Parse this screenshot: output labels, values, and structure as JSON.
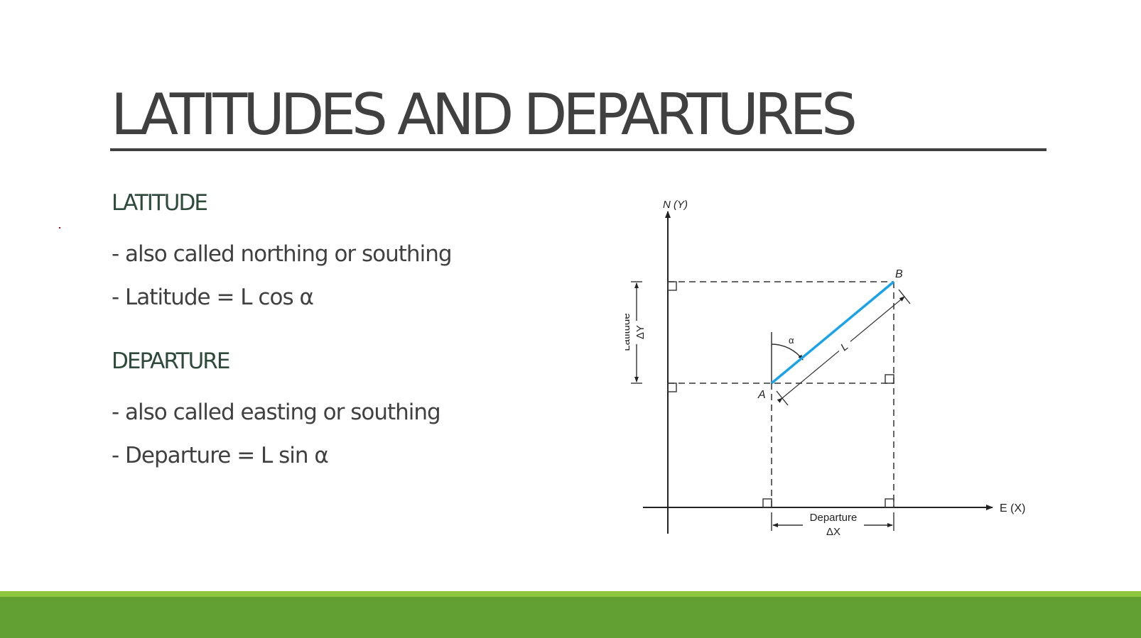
{
  "slide": {
    "title": "LATITUDES AND DEPARTURES"
  },
  "latitude": {
    "heading": "LATITUDE",
    "bullets": [
      "- also called northing or southing",
      "- Latitude = L cos α"
    ]
  },
  "departure": {
    "heading": "DEPARTURE",
    "bullets": [
      "- also called easting or southing",
      "- Departure = L sin α"
    ]
  },
  "diagram": {
    "y_axis_label": "N (Y)",
    "x_axis_label": "E (X)",
    "point_a": "A",
    "point_b": "B",
    "line_label": "L",
    "angle_label": "α",
    "latitude_label": "Latitude",
    "delta_y_label": "ΔY",
    "departure_label": "Departure",
    "delta_x_label": "ΔX",
    "line_color": "#1aa3e8"
  },
  "colors": {
    "title": "#404040",
    "heading": "#2e4a3a",
    "band_light": "#8dc63f",
    "band_dark": "#62a033"
  }
}
